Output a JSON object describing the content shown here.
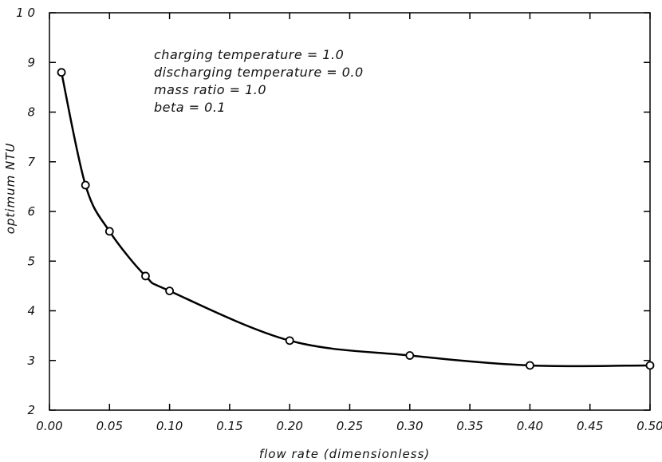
{
  "chart_data": {
    "type": "line",
    "xlabel": "flow rate (dimensionless)",
    "ylabel": "optimum NTU",
    "xlim": [
      0.0,
      0.5
    ],
    "ylim": [
      2,
      10
    ],
    "x_ticks": [
      "0.00",
      "0.05",
      "0.10",
      "0.15",
      "0.20",
      "0.25",
      "0.30",
      "0.35",
      "0.40",
      "0.45",
      "0.50"
    ],
    "y_ticks": [
      "2",
      "3",
      "4",
      "5",
      "6",
      "7",
      "8",
      "9",
      "1 0"
    ],
    "grid": false,
    "series": [
      {
        "x": [
          0.01,
          0.03,
          0.05,
          0.08,
          0.1,
          0.2,
          0.3,
          0.4,
          0.5
        ],
        "y": [
          8.8,
          6.53,
          5.6,
          4.7,
          4.4,
          3.4,
          3.1,
          2.9,
          2.9
        ],
        "marker": "open-circle",
        "color": "#000000"
      }
    ],
    "annotations": [
      "charging temperature = 1.0",
      "discharging temperature = 0.0",
      "mass ratio = 1.0",
      "beta = 0.1"
    ]
  }
}
